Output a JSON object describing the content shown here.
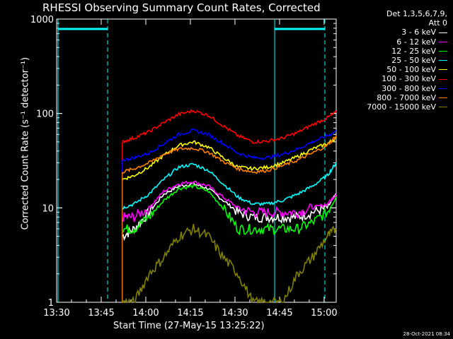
{
  "title": "RHESSI Observing Summary Count Rates, Corrected",
  "legend_header": [
    "Det 1,3,5,6,7,9,",
    "Att 0"
  ],
  "timestamp": "28-Oct-2021 08:34",
  "chart_data": {
    "type": "line",
    "title": "RHESSI Observing Summary Count Rates, Corrected",
    "xlabel": "Start Time (27-May-15 13:25:22)",
    "ylabel": "Corrected Count Rate (s⁻¹ detector⁻¹)",
    "x_ticks": [
      "13:30",
      "13:45",
      "14:00",
      "14:15",
      "14:30",
      "14:45",
      "15:00"
    ],
    "x_range_minutes": [
      13.93,
      108.0
    ],
    "y_scale": "log",
    "ylim": [
      1,
      1000
    ],
    "y_ticks": [
      "1",
      "10",
      "100",
      "1000"
    ],
    "x_minutes": [
      36,
      40,
      45,
      50,
      55,
      60,
      65,
      70,
      75,
      80,
      85,
      90,
      95,
      100,
      105,
      108
    ],
    "series": [
      {
        "name": "3 - 6 keV",
        "color": "#ffffff",
        "values": [
          5,
          6,
          9,
          14,
          17,
          18,
          16,
          12,
          9,
          8,
          8,
          8,
          8,
          9,
          10,
          14
        ]
      },
      {
        "name": "6 - 12 keV",
        "color": "#ff00ff",
        "values": [
          8,
          8,
          10,
          15,
          18,
          19,
          17,
          13,
          10,
          9,
          9,
          9,
          9,
          10,
          11,
          14
        ]
      },
      {
        "name": "12 - 25 keV",
        "color": "#00ff00",
        "values": [
          6,
          6,
          8,
          12,
          16,
          17,
          15,
          10,
          6,
          6,
          6,
          6,
          6,
          7,
          9,
          13
        ]
      },
      {
        "name": "25 - 50 keV",
        "color": "#00ffff",
        "values": [
          10,
          11,
          14,
          20,
          27,
          29,
          25,
          18,
          13,
          11,
          11,
          12,
          14,
          17,
          22,
          30
        ]
      },
      {
        "name": "50 - 100 keV",
        "color": "#ffff00",
        "values": [
          20,
          22,
          27,
          36,
          46,
          50,
          44,
          34,
          27,
          26,
          27,
          30,
          35,
          42,
          48,
          55
        ]
      },
      {
        "name": "100 - 300 keV",
        "color": "#ff0000",
        "values": [
          50,
          55,
          64,
          80,
          98,
          107,
          96,
          74,
          58,
          50,
          51,
          55,
          63,
          76,
          90,
          103
        ]
      },
      {
        "name": "300 - 800 keV",
        "color": "#0000ff",
        "values": [
          32,
          34,
          38,
          48,
          60,
          66,
          60,
          48,
          38,
          34,
          34,
          37,
          42,
          50,
          58,
          65
        ]
      },
      {
        "name": "800 - 7000 keV",
        "color": "#ff8000",
        "values": [
          24,
          26,
          30,
          37,
          42,
          43,
          39,
          31,
          26,
          24,
          25,
          28,
          32,
          38,
          46,
          58
        ]
      },
      {
        "name": "7000 - 15000 keV",
        "color": "#808000",
        "values": [
          1,
          1,
          2,
          3,
          5,
          6,
          5,
          3,
          2,
          1,
          1,
          1,
          2,
          3,
          5,
          6
        ]
      }
    ],
    "legend_position": "right"
  }
}
